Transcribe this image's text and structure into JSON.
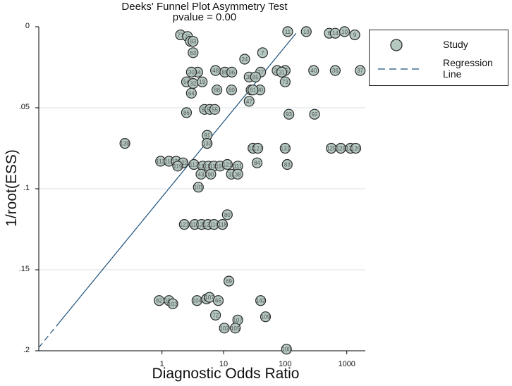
{
  "chart_data": {
    "type": "scatter",
    "title": "Deeks' Funnel Plot Asymmetry Test",
    "subtitle": "pvalue =    0.00",
    "xlabel": "Diagnostic Odds Ratio",
    "ylabel": "1/root(ESS)",
    "xscale": "log10",
    "xlim": [
      0.01,
      2000
    ],
    "ylim": [
      0,
      0.2
    ],
    "y_inverted": true,
    "x_ticks": [
      1,
      10,
      100,
      1000
    ],
    "x_tick_labels": [
      "1",
      "10",
      "100",
      "1000"
    ],
    "y_ticks": [
      0,
      0.05,
      0.1,
      0.15,
      0.2
    ],
    "y_tick_labels": [
      "0",
      ".05",
      ".1",
      ".15",
      ".2"
    ],
    "legend": {
      "position": "right",
      "entries": [
        {
          "label": "Study",
          "marker": "circle"
        },
        {
          "label": "Regression Line",
          "label_lines": [
            "Regression",
            "Line"
          ],
          "marker": "dashed-line"
        }
      ]
    },
    "colors": {
      "marker_fill": "#b4c8c0",
      "marker_edge": "#2a2a2a",
      "line": "#1b4f7a",
      "label": "#555555"
    },
    "regression_line": {
      "x": [
        0.01,
        150
      ],
      "y": [
        0.198,
        0.004
      ]
    },
    "points": [
      {
        "id": "11",
        "x": 110,
        "y": 0.003
      },
      {
        "id": "13",
        "x": 220,
        "y": 0.003
      },
      {
        "id": "6",
        "x": 520,
        "y": 0.004
      },
      {
        "id": "14",
        "x": 650,
        "y": 0.004
      },
      {
        "id": "10",
        "x": 920,
        "y": 0.003
      },
      {
        "id": "9",
        "x": 1350,
        "y": 0.005
      },
      {
        "id": "71",
        "x": 2.0,
        "y": 0.005
      },
      {
        "id": "76",
        "x": 2.6,
        "y": 0.006
      },
      {
        "id": "82",
        "x": 2.9,
        "y": 0.009
      },
      {
        "id": "83",
        "x": 3.2,
        "y": 0.009
      },
      {
        "id": "63",
        "x": 3.2,
        "y": 0.016
      },
      {
        "id": "7",
        "x": 43,
        "y": 0.016
      },
      {
        "id": "24",
        "x": 22,
        "y": 0.02
      },
      {
        "id": "40",
        "x": 290,
        "y": 0.027
      },
      {
        "id": "36",
        "x": 650,
        "y": 0.027
      },
      {
        "id": "37",
        "x": 1650,
        "y": 0.027
      },
      {
        "id": "48",
        "x": 7.4,
        "y": 0.027
      },
      {
        "id": "44",
        "x": 3.8,
        "y": 0.028
      },
      {
        "id": "30",
        "x": 3.0,
        "y": 0.028
      },
      {
        "id": "89",
        "x": 10.5,
        "y": 0.028
      },
      {
        "id": "96",
        "x": 13.6,
        "y": 0.028
      },
      {
        "id": "27",
        "x": 40,
        "y": 0.028
      },
      {
        "id": "28",
        "x": 74,
        "y": 0.027
      },
      {
        "id": "25",
        "x": 100,
        "y": 0.027
      },
      {
        "id": "31",
        "x": 88,
        "y": 0.028
      },
      {
        "id": "35",
        "x": 26,
        "y": 0.031
      },
      {
        "id": "85",
        "x": 33,
        "y": 0.031
      },
      {
        "id": "56",
        "x": 2.5,
        "y": 0.034
      },
      {
        "id": "32",
        "x": 3.2,
        "y": 0.035
      },
      {
        "id": "19",
        "x": 4.5,
        "y": 0.034
      },
      {
        "id": "73",
        "x": 100,
        "y": 0.034
      },
      {
        "id": "64",
        "x": 3.0,
        "y": 0.041
      },
      {
        "id": "88",
        "x": 7.8,
        "y": 0.039
      },
      {
        "id": "60",
        "x": 13.5,
        "y": 0.039
      },
      {
        "id": "98",
        "x": 28,
        "y": 0.039
      },
      {
        "id": "90",
        "x": 39,
        "y": 0.039
      },
      {
        "id": "61",
        "x": 30,
        "y": 0.039
      },
      {
        "id": "47",
        "x": 26,
        "y": 0.046
      },
      {
        "id": "86",
        "x": 2.5,
        "y": 0.053
      },
      {
        "id": "52",
        "x": 4.9,
        "y": 0.051
      },
      {
        "id": "57",
        "x": 6.0,
        "y": 0.051
      },
      {
        "id": "55",
        "x": 7.2,
        "y": 0.051
      },
      {
        "id": "93",
        "x": 115,
        "y": 0.054
      },
      {
        "id": "92",
        "x": 300,
        "y": 0.054
      },
      {
        "id": "91",
        "x": 5.4,
        "y": 0.067
      },
      {
        "id": "139",
        "x": 0.25,
        "y": 0.072
      },
      {
        "id": "133",
        "x": 5.4,
        "y": 0.072
      },
      {
        "id": "130",
        "x": 30,
        "y": 0.075
      },
      {
        "id": "127",
        "x": 36,
        "y": 0.075
      },
      {
        "id": "131",
        "x": 100,
        "y": 0.075
      },
      {
        "id": "125",
        "x": 560,
        "y": 0.075
      },
      {
        "id": "129",
        "x": 800,
        "y": 0.075
      },
      {
        "id": "128",
        "x": 1150,
        "y": 0.075
      },
      {
        "id": "126",
        "x": 1400,
        "y": 0.075
      },
      {
        "id": "113",
        "x": 0.95,
        "y": 0.083
      },
      {
        "id": "118",
        "x": 1.3,
        "y": 0.083
      },
      {
        "id": "120",
        "x": 1.7,
        "y": 0.083
      },
      {
        "id": "122",
        "x": 2.2,
        "y": 0.084
      },
      {
        "id": "119",
        "x": 1.8,
        "y": 0.086
      },
      {
        "id": "112",
        "x": 3.3,
        "y": 0.085
      },
      {
        "id": "117",
        "x": 4.6,
        "y": 0.086
      },
      {
        "id": "114",
        "x": 5.7,
        "y": 0.086
      },
      {
        "id": "116",
        "x": 7.0,
        "y": 0.086
      },
      {
        "id": "110",
        "x": 8.8,
        "y": 0.086
      },
      {
        "id": "121",
        "x": 11.5,
        "y": 0.085
      },
      {
        "id": "111",
        "x": 17,
        "y": 0.086
      },
      {
        "id": "84",
        "x": 35,
        "y": 0.084
      },
      {
        "id": "83",
        "x": 108,
        "y": 0.085
      },
      {
        "id": "43",
        "x": 4.3,
        "y": 0.091
      },
      {
        "id": "90",
        "x": 6.2,
        "y": 0.091
      },
      {
        "id": "32",
        "x": 13.4,
        "y": 0.091
      },
      {
        "id": "38",
        "x": 17,
        "y": 0.091
      },
      {
        "id": "101",
        "x": 3.9,
        "y": 0.099
      },
      {
        "id": "80",
        "x": 11.5,
        "y": 0.116
      },
      {
        "id": "121",
        "x": 2.3,
        "y": 0.122
      },
      {
        "id": "115",
        "x": 3.4,
        "y": 0.122
      },
      {
        "id": "123",
        "x": 4.4,
        "y": 0.122
      },
      {
        "id": "124",
        "x": 5.6,
        "y": 0.122
      },
      {
        "id": "116",
        "x": 7.0,
        "y": 0.122
      },
      {
        "id": "118",
        "x": 9.6,
        "y": 0.122
      },
      {
        "id": "69",
        "x": 12.2,
        "y": 0.157
      },
      {
        "id": "62",
        "x": 0.9,
        "y": 0.169
      },
      {
        "id": "101",
        "x": 1.3,
        "y": 0.169
      },
      {
        "id": "103",
        "x": 1.5,
        "y": 0.171
      },
      {
        "id": "104",
        "x": 3.7,
        "y": 0.169
      },
      {
        "id": "63",
        "x": 5.3,
        "y": 0.168
      },
      {
        "id": "107",
        "x": 5.9,
        "y": 0.167
      },
      {
        "id": "65",
        "x": 8.2,
        "y": 0.169
      },
      {
        "id": "142",
        "x": 40,
        "y": 0.169
      },
      {
        "id": "72",
        "x": 7.4,
        "y": 0.178
      },
      {
        "id": "109",
        "x": 48,
        "y": 0.179
      },
      {
        "id": "107",
        "x": 17,
        "y": 0.181
      },
      {
        "id": "102",
        "x": 10.3,
        "y": 0.186
      },
      {
        "id": "105",
        "x": 15.5,
        "y": 0.186
      },
      {
        "id": "100",
        "x": 105,
        "y": 0.199
      }
    ]
  }
}
